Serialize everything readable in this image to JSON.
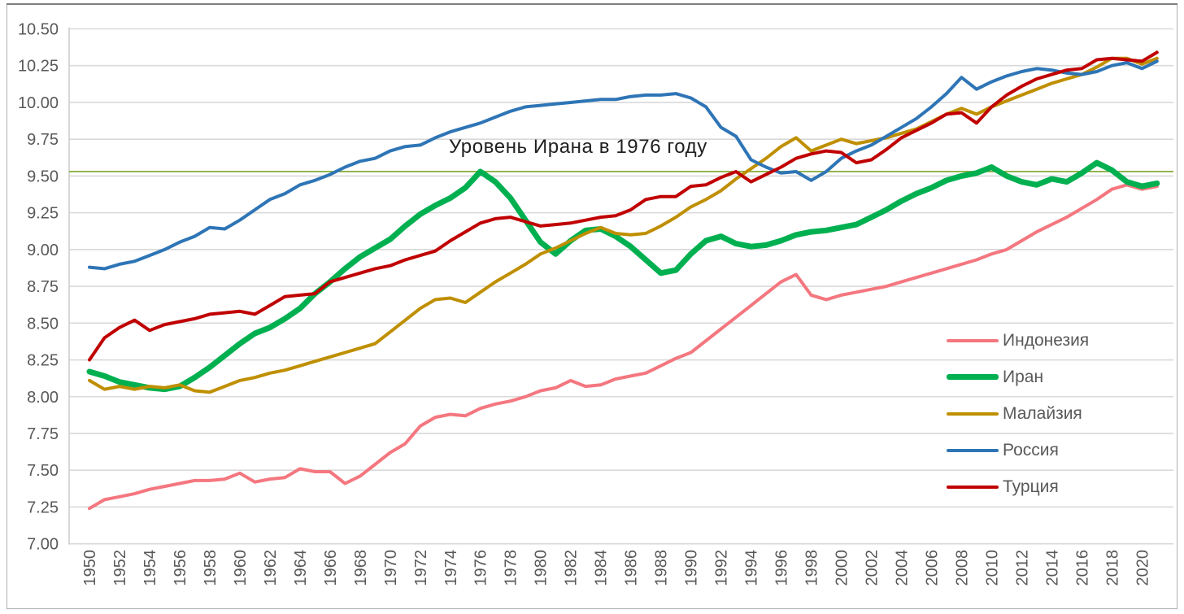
{
  "figure": {
    "annotation_label": "Уровень Ирана в 1976 году",
    "background": "#FFFFFF",
    "border_color": "#AEAEAE"
  },
  "chart_data": {
    "type": "line",
    "title": "",
    "xlabel": "",
    "ylabel": "",
    "ylim": [
      7.0,
      10.5
    ],
    "xlim": [
      1950,
      2021
    ],
    "grid": true,
    "gridline_color": "#D9D9D9",
    "axis_label_color": "#595959",
    "legend_position": "right-middle",
    "y_tick_labels": [
      "10.50",
      "10.25",
      "10.00",
      "9.75",
      "9.50",
      "9.25",
      "9.00",
      "8.75",
      "8.50",
      "8.25",
      "8.00",
      "7.75",
      "7.50",
      "7.25",
      "7.00"
    ],
    "y_ticks": [
      10.5,
      10.25,
      10.0,
      9.75,
      9.5,
      9.25,
      9.0,
      8.75,
      8.5,
      8.25,
      8.0,
      7.75,
      7.5,
      7.25,
      7.0
    ],
    "x_tick_labels": [
      "1950",
      "1952",
      "1954",
      "1956",
      "1958",
      "1960",
      "1962",
      "1964",
      "1966",
      "1968",
      "1970",
      "1972",
      "1974",
      "1976",
      "1978",
      "1980",
      "1982",
      "1984",
      "1986",
      "1988",
      "1990",
      "1992",
      "1994",
      "1996",
      "1998",
      "2000",
      "2002",
      "2004",
      "2006",
      "2008",
      "2010",
      "2012",
      "2014",
      "2016",
      "2018",
      "2020"
    ],
    "reference_line": {
      "value": 9.53,
      "color": "#7BA428",
      "label": "Уровень Ирана в 1976 году"
    },
    "x": [
      1950,
      1951,
      1952,
      1953,
      1954,
      1955,
      1956,
      1957,
      1958,
      1959,
      1960,
      1961,
      1962,
      1963,
      1964,
      1965,
      1966,
      1967,
      1968,
      1969,
      1970,
      1971,
      1972,
      1973,
      1974,
      1975,
      1976,
      1977,
      1978,
      1979,
      1980,
      1981,
      1982,
      1983,
      1984,
      1985,
      1986,
      1987,
      1988,
      1989,
      1990,
      1991,
      1992,
      1993,
      1994,
      1995,
      1996,
      1997,
      1998,
      1999,
      2000,
      2001,
      2002,
      2003,
      2004,
      2005,
      2006,
      2007,
      2008,
      2009,
      2010,
      2011,
      2012,
      2013,
      2014,
      2015,
      2016,
      2017,
      2018,
      2019,
      2020,
      2021
    ],
    "series": [
      {
        "id": "indonesia",
        "name": "Индонезия",
        "color": "#F4777F",
        "width": 4,
        "values": [
          7.24,
          7.3,
          7.32,
          7.34,
          7.37,
          7.39,
          7.41,
          7.43,
          7.43,
          7.44,
          7.48,
          7.42,
          7.44,
          7.45,
          7.51,
          7.49,
          7.49,
          7.41,
          7.46,
          7.54,
          7.62,
          7.68,
          7.8,
          7.86,
          7.88,
          7.87,
          7.92,
          7.95,
          7.97,
          8.0,
          8.04,
          8.06,
          8.11,
          8.07,
          8.08,
          8.12,
          8.14,
          8.16,
          8.21,
          8.26,
          8.3,
          8.38,
          8.46,
          8.54,
          8.62,
          8.7,
          8.78,
          8.83,
          8.69,
          8.66,
          8.69,
          8.71,
          8.73,
          8.75,
          8.78,
          8.81,
          8.84,
          8.87,
          8.9,
          8.93,
          8.97,
          9.0,
          9.06,
          9.12,
          9.17,
          9.22,
          9.28,
          9.34,
          9.41,
          9.44,
          9.41,
          9.43
        ]
      },
      {
        "id": "iran",
        "name": "Иран",
        "color": "#00B050",
        "width": 7,
        "values": [
          8.17,
          8.14,
          8.1,
          8.08,
          8.06,
          8.05,
          8.07,
          8.13,
          8.2,
          8.28,
          8.36,
          8.43,
          8.47,
          8.53,
          8.6,
          8.7,
          8.78,
          8.87,
          8.95,
          9.01,
          9.07,
          9.16,
          9.24,
          9.3,
          9.35,
          9.42,
          9.53,
          9.46,
          9.35,
          9.2,
          9.05,
          8.97,
          9.06,
          9.13,
          9.14,
          9.09,
          9.02,
          8.93,
          8.84,
          8.86,
          8.97,
          9.06,
          9.09,
          9.04,
          9.02,
          9.03,
          9.06,
          9.1,
          9.12,
          9.13,
          9.15,
          9.17,
          9.22,
          9.27,
          9.33,
          9.38,
          9.42,
          9.47,
          9.5,
          9.52,
          9.56,
          9.5,
          9.46,
          9.44,
          9.48,
          9.46,
          9.52,
          9.59,
          9.54,
          9.46,
          9.43,
          9.45
        ]
      },
      {
        "id": "malaysia",
        "name": "Малайзия",
        "color": "#BF8F00",
        "width": 4,
        "values": [
          8.11,
          8.05,
          8.07,
          8.05,
          8.07,
          8.06,
          8.08,
          8.04,
          8.03,
          8.07,
          8.11,
          8.13,
          8.16,
          8.18,
          8.21,
          8.24,
          8.27,
          8.3,
          8.33,
          8.36,
          8.44,
          8.52,
          8.6,
          8.66,
          8.67,
          8.64,
          8.71,
          8.78,
          8.84,
          8.9,
          8.97,
          9.01,
          9.06,
          9.11,
          9.15,
          9.11,
          9.1,
          9.11,
          9.16,
          9.22,
          9.29,
          9.34,
          9.4,
          9.48,
          9.55,
          9.62,
          9.7,
          9.76,
          9.67,
          9.71,
          9.75,
          9.72,
          9.74,
          9.76,
          9.79,
          9.82,
          9.87,
          9.92,
          9.96,
          9.92,
          9.97,
          10.01,
          10.05,
          10.09,
          10.13,
          10.16,
          10.19,
          10.24,
          10.3,
          10.3,
          10.26,
          10.3
        ]
      },
      {
        "id": "russia",
        "name": "Россия",
        "color": "#2E75B6",
        "width": 4,
        "values": [
          8.88,
          8.87,
          8.9,
          8.92,
          8.96,
          9.0,
          9.05,
          9.09,
          9.15,
          9.14,
          9.2,
          9.27,
          9.34,
          9.38,
          9.44,
          9.47,
          9.51,
          9.56,
          9.6,
          9.62,
          9.67,
          9.7,
          9.71,
          9.76,
          9.8,
          9.83,
          9.86,
          9.9,
          9.94,
          9.97,
          9.98,
          9.99,
          10.0,
          10.01,
          10.02,
          10.02,
          10.04,
          10.05,
          10.05,
          10.06,
          10.03,
          9.97,
          9.83,
          9.77,
          9.61,
          9.56,
          9.52,
          9.53,
          9.47,
          9.53,
          9.62,
          9.67,
          9.71,
          9.77,
          9.83,
          9.89,
          9.97,
          10.06,
          10.17,
          10.09,
          10.14,
          10.18,
          10.21,
          10.23,
          10.22,
          10.2,
          10.19,
          10.21,
          10.25,
          10.27,
          10.23,
          10.28
        ]
      },
      {
        "id": "turkey",
        "name": "Турция",
        "color": "#C00000",
        "width": 4,
        "values": [
          8.25,
          8.4,
          8.47,
          8.52,
          8.45,
          8.49,
          8.51,
          8.53,
          8.56,
          8.57,
          8.58,
          8.56,
          8.62,
          8.68,
          8.69,
          8.7,
          8.78,
          8.81,
          8.84,
          8.87,
          8.89,
          8.93,
          8.96,
          8.99,
          9.06,
          9.12,
          9.18,
          9.21,
          9.22,
          9.19,
          9.16,
          9.17,
          9.18,
          9.2,
          9.22,
          9.23,
          9.27,
          9.34,
          9.36,
          9.36,
          9.43,
          9.44,
          9.49,
          9.53,
          9.46,
          9.51,
          9.56,
          9.62,
          9.65,
          9.67,
          9.66,
          9.59,
          9.61,
          9.68,
          9.76,
          9.81,
          9.86,
          9.92,
          9.93,
          9.86,
          9.97,
          10.05,
          10.11,
          10.16,
          10.19,
          10.22,
          10.23,
          10.29,
          10.3,
          10.29,
          10.28,
          10.34
        ]
      }
    ]
  }
}
